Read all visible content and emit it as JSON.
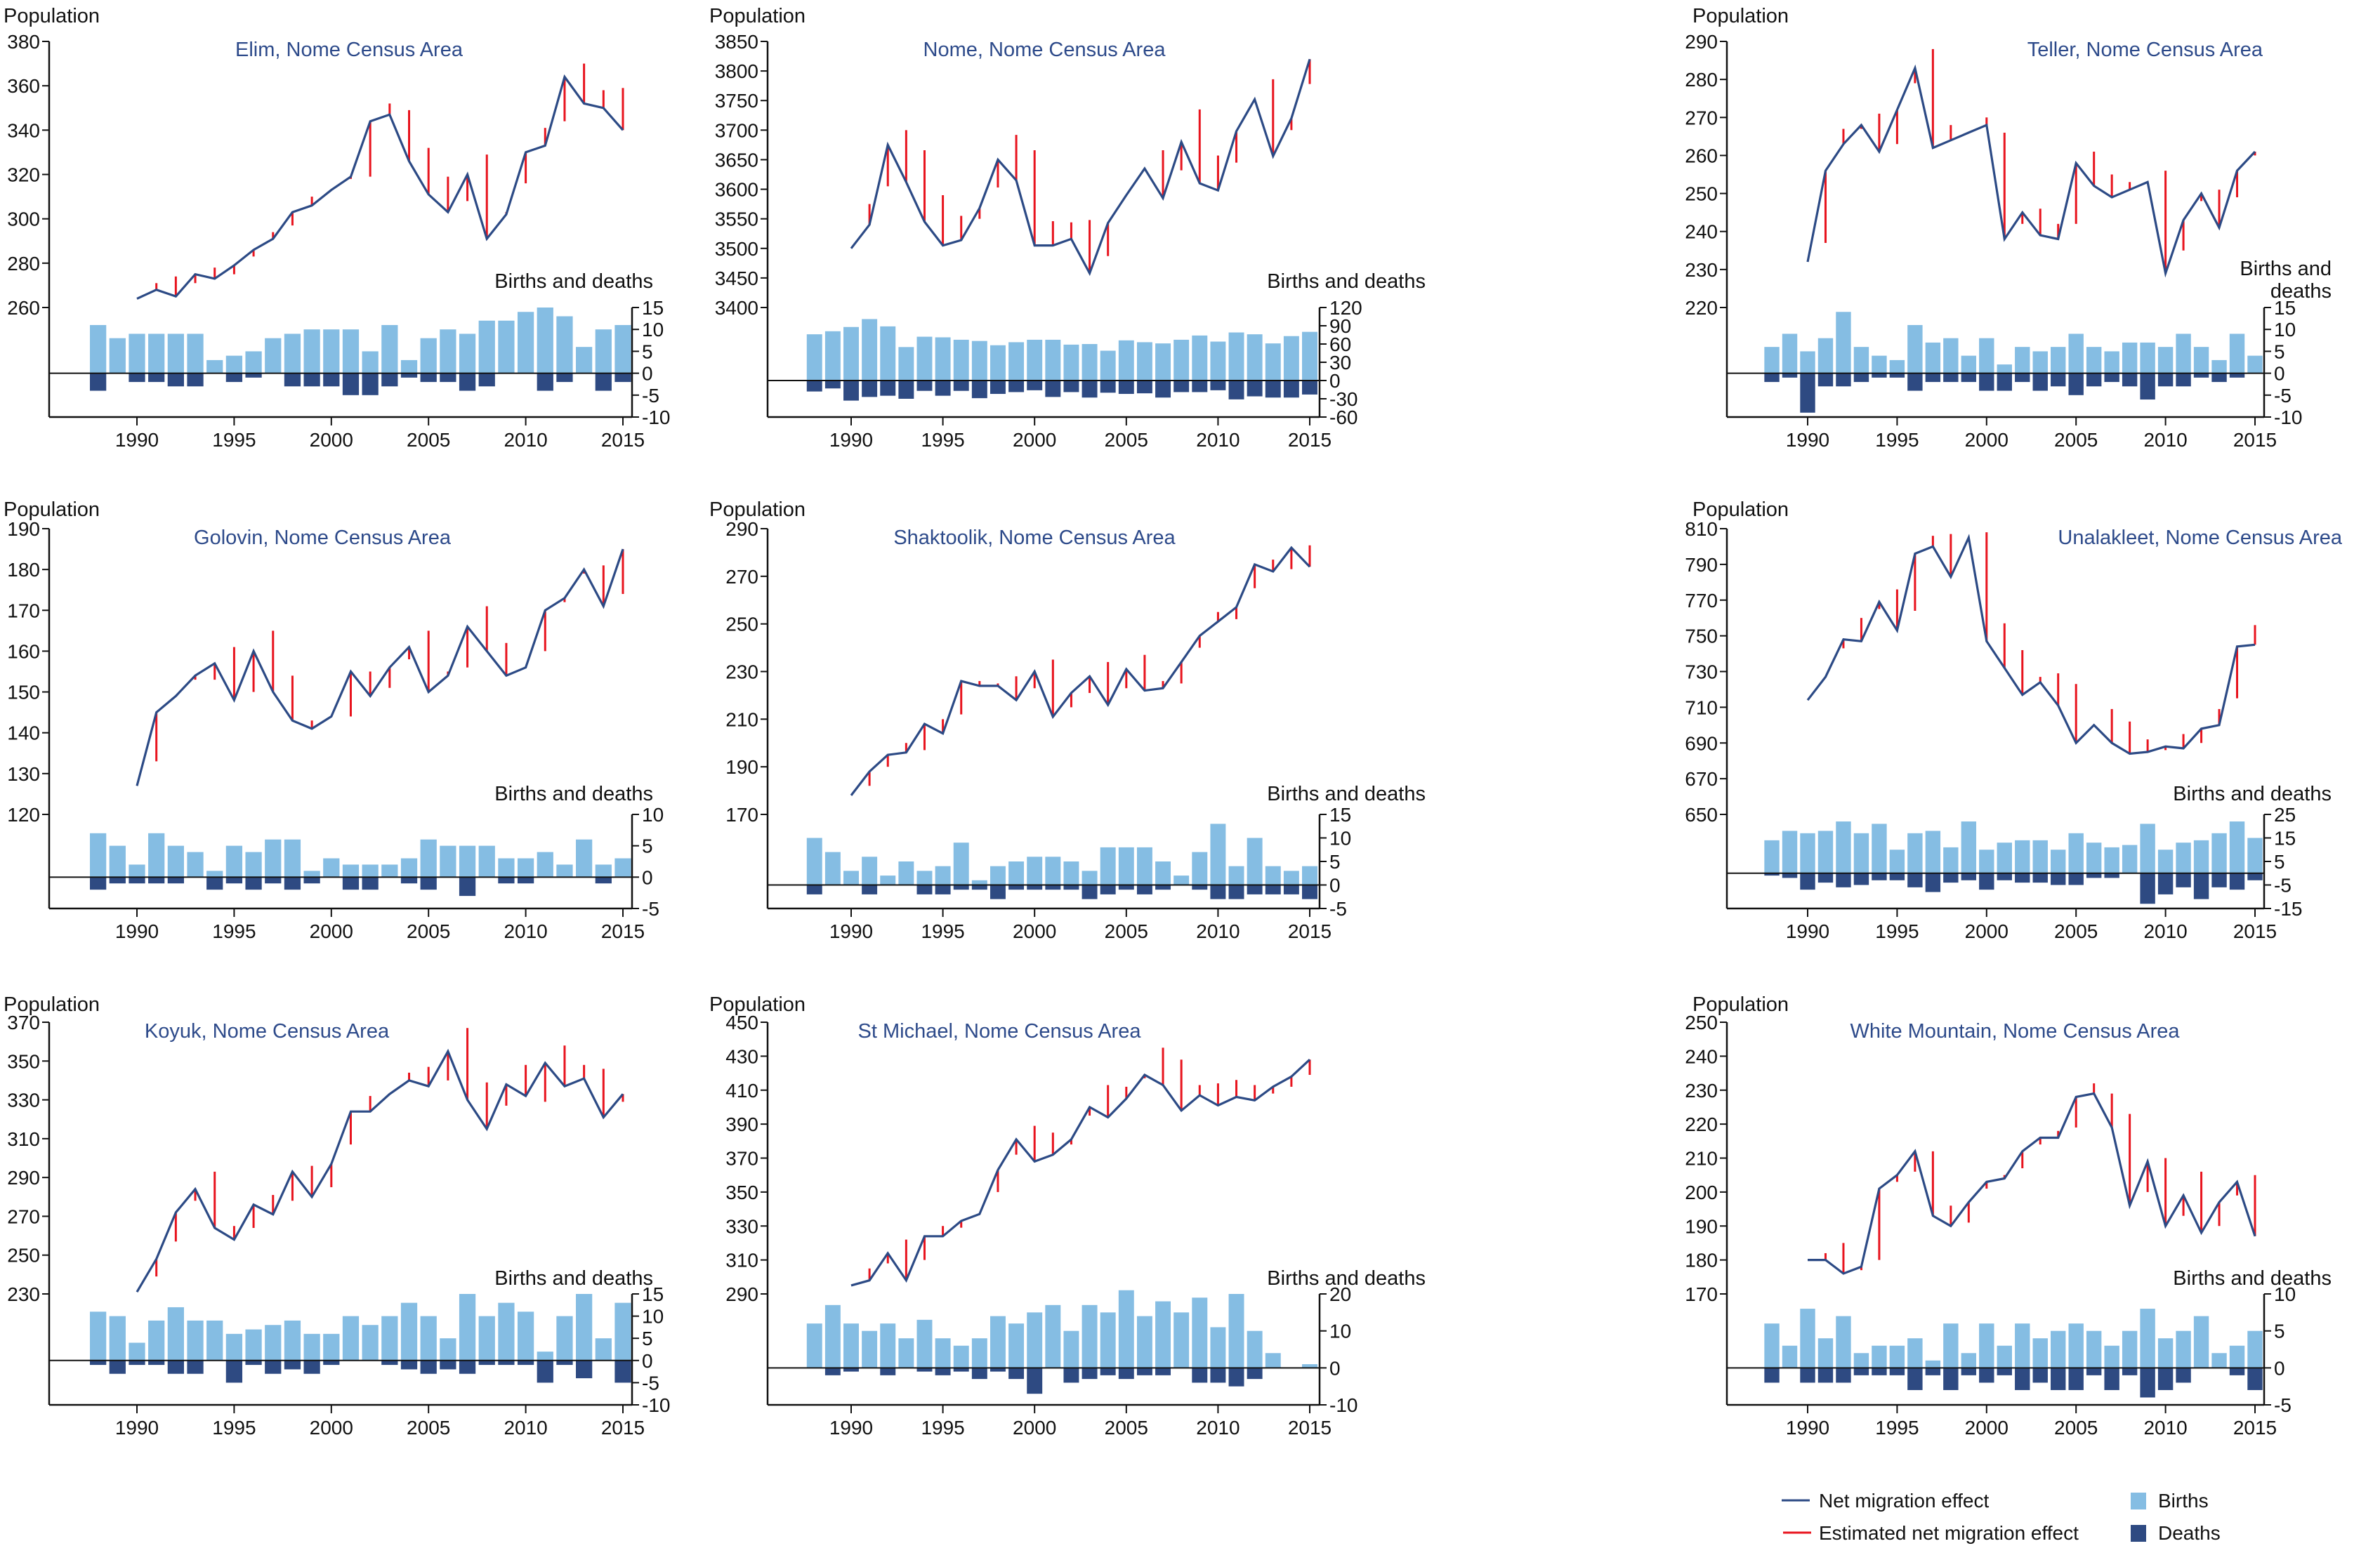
{
  "colors": {
    "births": "#85bde3",
    "deaths": "#2e4a82",
    "net_migration": "#2c4a85",
    "estimated": "#e8141e",
    "title": "#2d4a8a"
  },
  "legend": {
    "net_migration": "Net migration effect",
    "estimated": "Estimated net migration effect",
    "births": "Births",
    "deaths": "Deaths"
  },
  "chart_data": [
    {
      "type": "line+bar",
      "title": "Elim, Nome Census Area",
      "ylabel": "Population",
      "bd_label": [
        "Births and deaths"
      ],
      "pop_ylim": [
        260,
        380
      ],
      "pop_step": 20,
      "bd_ylim": [
        -10,
        15
      ],
      "bd_ticks": [
        -10,
        -5,
        0,
        5,
        10,
        15
      ],
      "years": [
        1990,
        2015
      ],
      "bar_years": [
        1988,
        2015
      ],
      "xticks": [
        1990,
        1995,
        2000,
        2005,
        2010,
        2015
      ],
      "population": [
        264,
        268,
        265,
        275,
        273,
        279,
        286,
        291,
        303,
        306,
        313,
        319,
        344,
        347,
        326,
        311,
        303,
        320,
        291,
        302,
        330,
        333,
        364,
        352,
        350,
        340
      ],
      "estimated": [
        null,
        271,
        274,
        271,
        278,
        275,
        283,
        294,
        297,
        310,
        null,
        318,
        319,
        352,
        349,
        332,
        319,
        308,
        329,
        303,
        316,
        341,
        344,
        370,
        358,
        359
      ],
      "births": [
        11,
        8,
        9,
        9,
        9,
        9,
        3,
        4,
        5,
        8,
        9,
        10,
        10,
        10,
        5,
        11,
        3,
        8,
        10,
        9,
        12,
        12,
        14,
        15,
        13,
        6,
        10,
        11
      ],
      "deaths": [
        -4,
        0,
        -2,
        -2,
        -3,
        -3,
        0,
        -2,
        -1,
        0,
        -3,
        -3,
        -3,
        -5,
        -5,
        -3,
        -1,
        -2,
        -2,
        -4,
        -3,
        0,
        0,
        -4,
        -2,
        0,
        -4,
        -2
      ]
    },
    {
      "type": "line+bar",
      "title": "Nome, Nome Census Area",
      "ylabel": "Population",
      "bd_label": [
        "Births and deaths"
      ],
      "pop_ylim": [
        3400,
        3850
      ],
      "pop_step": 50,
      "bd_ylim": [
        -60,
        120
      ],
      "bd_ticks": [
        -60,
        -30,
        0,
        30,
        60,
        90,
        120
      ],
      "years": [
        1990,
        2015
      ],
      "bar_years": [
        1988,
        2015
      ],
      "xticks": [
        1990,
        1995,
        2000,
        2005,
        2010,
        2015
      ],
      "population": [
        3500,
        3540,
        3675,
        3612,
        3545,
        3505,
        3514,
        3568,
        3650,
        3615,
        3505,
        3505,
        3516,
        3458,
        3543,
        3590,
        3635,
        3585,
        3680,
        3610,
        3598,
        3698,
        3752,
        3656,
        3720,
        3820
      ],
      "estimated": [
        null,
        3575,
        3605,
        3700,
        3666,
        3590,
        3555,
        3550,
        3603,
        3692,
        3666,
        3546,
        3544,
        3548,
        3487,
        null,
        null,
        3666,
        3632,
        3735,
        3657,
        3645,
        null,
        3786,
        3700,
        3778
      ],
      "births": [
        76,
        81,
        88,
        101,
        89,
        55,
        72,
        71,
        67,
        65,
        58,
        63,
        67,
        67,
        59,
        60,
        49,
        66,
        63,
        61,
        67,
        74,
        64,
        79,
        76,
        61,
        73,
        80
      ],
      "deaths": [
        -18,
        -13,
        -33,
        -27,
        -25,
        -30,
        -17,
        -25,
        -17,
        -29,
        -22,
        -19,
        -16,
        -27,
        -19,
        -28,
        -20,
        -22,
        -21,
        -28,
        -19,
        -19,
        -16,
        -31,
        -26,
        -28,
        -28,
        -23
      ]
    },
    {
      "type": "line+bar",
      "title": "Teller, Nome Census Area",
      "ylabel": "Population",
      "bd_label": [
        "Births and",
        "deaths"
      ],
      "pop_ylim": [
        220,
        290
      ],
      "pop_step": 10,
      "bd_ylim": [
        -10,
        15
      ],
      "bd_ticks": [
        -10,
        -5,
        0,
        5,
        10,
        15
      ],
      "years": [
        1990,
        2015
      ],
      "bar_years": [
        1988,
        2015
      ],
      "xticks": [
        1990,
        1995,
        2000,
        2005,
        2010,
        2015
      ],
      "population": [
        232,
        256,
        263,
        268,
        261,
        272,
        283,
        262,
        264,
        266,
        268,
        238,
        245,
        239,
        238,
        258,
        252,
        249,
        251,
        253,
        229,
        243,
        250,
        241,
        256,
        261
      ],
      "estimated": [
        null,
        237,
        267,
        267,
        271,
        263,
        279,
        288,
        268,
        null,
        270,
        266,
        242,
        246,
        242,
        242,
        261,
        255,
        253,
        null,
        256,
        235,
        248,
        251,
        249,
        260
      ],
      "births": [
        6,
        9,
        5,
        8,
        14,
        6,
        4,
        3,
        11,
        7,
        8,
        4,
        8,
        2,
        6,
        5,
        6,
        9,
        6,
        5,
        7,
        7,
        6,
        9,
        6,
        3,
        9,
        4
      ],
      "deaths": [
        -2,
        -1,
        -9,
        -3,
        -3,
        -2,
        -1,
        -1,
        -4,
        -2,
        -2,
        -2,
        -4,
        -4,
        -2,
        -4,
        -3,
        -5,
        -3,
        -2,
        -3,
        -6,
        -3,
        -3,
        -1,
        -2,
        -1,
        0
      ]
    },
    {
      "type": "line+bar",
      "title": "Golovin, Nome Census Area",
      "ylabel": "Population",
      "bd_label": [
        "Births and deaths"
      ],
      "pop_ylim": [
        120,
        190
      ],
      "pop_step": 10,
      "bd_ylim": [
        -5,
        10
      ],
      "bd_ticks": [
        -5,
        0,
        5,
        10
      ],
      "years": [
        1990,
        2015
      ],
      "bar_years": [
        1988,
        2015
      ],
      "xticks": [
        1990,
        1995,
        2000,
        2005,
        2010,
        2015
      ],
      "population": [
        127,
        145,
        149,
        154,
        157,
        148,
        160,
        150,
        143,
        141,
        144,
        155,
        149,
        156,
        161,
        150,
        154,
        166,
        160,
        154,
        156,
        170,
        173,
        180,
        171,
        185
      ],
      "estimated": [
        null,
        133,
        null,
        153,
        153,
        161,
        150,
        165,
        154,
        143,
        null,
        144,
        155,
        151,
        158,
        165,
        155,
        156,
        171,
        162,
        null,
        160,
        172,
        179,
        181,
        174
      ],
      "births": [
        7,
        5,
        2,
        7,
        5,
        4,
        1,
        5,
        4,
        6,
        6,
        1,
        3,
        2,
        2,
        2,
        3,
        6,
        5,
        5,
        5,
        3,
        3,
        4,
        2,
        6,
        2,
        3
      ],
      "deaths": [
        -2,
        -1,
        -1,
        -1,
        -1,
        0,
        -2,
        -1,
        -2,
        -1,
        -2,
        -1,
        0,
        -2,
        -2,
        0,
        -1,
        -2,
        0,
        -3,
        0,
        -1,
        -1,
        0,
        0,
        0,
        -1,
        0
      ]
    },
    {
      "type": "line+bar",
      "title": "Shaktoolik, Nome Census Area",
      "ylabel": "Population",
      "bd_label": [
        "Births and deaths"
      ],
      "pop_ylim": [
        170,
        290
      ],
      "pop_step": 20,
      "bd_ylim": [
        -5,
        15
      ],
      "bd_ticks": [
        -5,
        0,
        5,
        10,
        15
      ],
      "years": [
        1990,
        2015
      ],
      "bar_years": [
        1988,
        2015
      ],
      "xticks": [
        1990,
        1995,
        2000,
        2005,
        2010,
        2015
      ],
      "population": [
        178,
        188,
        195,
        196,
        208,
        204,
        226,
        224,
        224,
        218,
        230,
        211,
        221,
        228,
        216,
        231,
        222,
        223,
        234,
        245,
        251,
        257,
        275,
        272,
        282,
        274
      ],
      "estimated": [
        null,
        182,
        190,
        200,
        197,
        210,
        212,
        226,
        225,
        228,
        223,
        235,
        215,
        221,
        234,
        223,
        237,
        226,
        225,
        240,
        255,
        252,
        265,
        277,
        273,
        283
      ],
      "births": [
        10,
        7,
        3,
        6,
        2,
        5,
        3,
        4,
        9,
        1,
        4,
        5,
        6,
        6,
        5,
        3,
        8,
        8,
        8,
        5,
        2,
        7,
        13,
        4,
        10,
        4,
        3,
        4
      ],
      "deaths": [
        -2,
        0,
        0,
        -2,
        0,
        0,
        -2,
        -2,
        -1,
        -1,
        -3,
        -1,
        -1,
        -1,
        -1,
        -3,
        -2,
        -1,
        -2,
        -1,
        0,
        -1,
        -3,
        -3,
        -2,
        -2,
        -2,
        -3
      ]
    },
    {
      "type": "line+bar",
      "title": "Unalakleet, Nome Census Area",
      "ylabel": "Population",
      "bd_label": [
        "Births and deaths"
      ],
      "pop_ylim": [
        650,
        810
      ],
      "pop_step": 20,
      "bd_ylim": [
        -15,
        25
      ],
      "bd_ticks": [
        -15,
        -5,
        5,
        15,
        25
      ],
      "years": [
        1990,
        2015
      ],
      "bar_years": [
        1988,
        2015
      ],
      "xticks": [
        1990,
        1995,
        2000,
        2005,
        2010,
        2015
      ],
      "population": [
        714,
        727,
        748,
        747,
        769,
        753,
        796,
        800,
        783,
        805,
        747,
        732,
        717,
        724,
        711,
        690,
        700,
        690,
        684,
        685,
        688,
        687,
        698,
        700,
        744,
        745
      ],
      "estimated": [
        null,
        null,
        743,
        760,
        765,
        776,
        764,
        806,
        807,
        null,
        808,
        757,
        742,
        727,
        729,
        723,
        null,
        709,
        702,
        692,
        686,
        695,
        690,
        709,
        715,
        756
      ],
      "births": [
        14,
        18,
        17,
        18,
        22,
        17,
        21,
        10,
        17,
        18,
        11,
        22,
        10,
        13,
        14,
        14,
        10,
        17,
        13,
        11,
        12,
        21,
        10,
        13,
        14,
        17,
        22,
        15
      ],
      "deaths": [
        -1,
        -2,
        -7,
        -4,
        -6,
        -5,
        -3,
        -3,
        -6,
        -8,
        -4,
        -3,
        -7,
        -3,
        -4,
        -4,
        -5,
        -5,
        -2,
        -2,
        0,
        -13,
        -9,
        -6,
        -11,
        -6,
        -7,
        -3
      ]
    },
    {
      "type": "line+bar",
      "title": "Koyuk, Nome Census Area",
      "ylabel": "Population",
      "bd_label": [
        "Births and deaths"
      ],
      "pop_ylim": [
        230,
        370
      ],
      "pop_step": 20,
      "bd_ylim": [
        -10,
        15
      ],
      "bd_ticks": [
        -10,
        -5,
        0,
        5,
        10,
        15
      ],
      "years": [
        1990,
        2015
      ],
      "bar_years": [
        1988,
        2015
      ],
      "xticks": [
        1990,
        1995,
        2000,
        2005,
        2010,
        2015
      ],
      "population": [
        231,
        248,
        272,
        284,
        264,
        258,
        276,
        271,
        293,
        280,
        297,
        324,
        324,
        333,
        340,
        337,
        355,
        330,
        315,
        338,
        332,
        349,
        337,
        341,
        321,
        333
      ],
      "estimated": [
        null,
        239,
        257,
        278,
        293,
        265,
        264,
        281,
        278,
        296,
        285,
        307,
        332,
        null,
        344,
        347,
        340,
        367,
        339,
        327,
        348,
        329,
        358,
        348,
        346,
        329
      ],
      "births": [
        11,
        10,
        4,
        9,
        12,
        9,
        9,
        6,
        7,
        8,
        9,
        6,
        6,
        10,
        8,
        10,
        13,
        10,
        5,
        15,
        10,
        13,
        11,
        2,
        10,
        15,
        5,
        13
      ],
      "deaths": [
        -1,
        -3,
        -1,
        -1,
        -3,
        -3,
        0,
        -5,
        -1,
        -3,
        -2,
        -3,
        -1,
        0,
        0,
        -1,
        -2,
        -3,
        -2,
        -3,
        -1,
        -1,
        -1,
        -5,
        -1,
        -4,
        0,
        -5
      ]
    },
    {
      "type": "line+bar",
      "title": "St Michael, Nome Census Area",
      "ylabel": "Population",
      "bd_label": [
        "Births and deaths"
      ],
      "pop_ylim": [
        290,
        450
      ],
      "pop_step": 20,
      "bd_ylim": [
        -10,
        20
      ],
      "bd_ticks": [
        -10,
        0,
        10,
        20
      ],
      "years": [
        1990,
        2015
      ],
      "bar_years": [
        1988,
        2015
      ],
      "xticks": [
        1990,
        1995,
        2000,
        2005,
        2010,
        2015
      ],
      "population": [
        295,
        298,
        314,
        298,
        324,
        324,
        333,
        337,
        363,
        381,
        368,
        372,
        381,
        400,
        394,
        405,
        419,
        413,
        398,
        407,
        401,
        406,
        404,
        412,
        418,
        428
      ],
      "estimated": [
        null,
        305,
        308,
        322,
        310,
        330,
        329,
        null,
        350,
        372,
        389,
        385,
        378,
        395,
        413,
        412,
        417,
        435,
        428,
        413,
        414,
        416,
        413,
        408,
        412,
        419
      ],
      "births": [
        12,
        17,
        12,
        10,
        12,
        8,
        13,
        8,
        6,
        8,
        14,
        12,
        15,
        17,
        10,
        17,
        15,
        21,
        14,
        18,
        15,
        19,
        11,
        20,
        10,
        4,
        0,
        1
      ],
      "deaths": [
        0,
        -2,
        -1,
        0,
        -2,
        0,
        -1,
        -2,
        -1,
        -3,
        -1,
        -3,
        -7,
        0,
        -4,
        -3,
        -2,
        -3,
        -2,
        -2,
        0,
        -4,
        -4,
        -5,
        -3,
        0,
        0,
        0
      ]
    },
    {
      "type": "line+bar",
      "title": "White Mountain, Nome Census Area",
      "ylabel": "Population",
      "bd_label": [
        "Births and deaths"
      ],
      "pop_ylim": [
        170,
        250
      ],
      "pop_step": 10,
      "bd_ylim": [
        -5,
        10
      ],
      "bd_ticks": [
        -5,
        0,
        5,
        10
      ],
      "years": [
        1990,
        2015
      ],
      "bar_years": [
        1988,
        2015
      ],
      "xticks": [
        1990,
        1995,
        2000,
        2005,
        2010,
        2015
      ],
      "population": [
        180,
        180,
        176,
        178,
        201,
        205,
        212,
        193,
        190,
        197,
        203,
        204,
        212,
        216,
        216,
        228,
        229,
        219,
        196,
        209,
        190,
        199,
        188,
        197,
        203,
        187
      ],
      "estimated": [
        null,
        182,
        185,
        177,
        180,
        203,
        206,
        212,
        196,
        191,
        201,
        205,
        207,
        214,
        218,
        219,
        232,
        229,
        223,
        200,
        210,
        193,
        206,
        190,
        199,
        205
      ],
      "births": [
        6,
        3,
        8,
        4,
        7,
        2,
        3,
        3,
        4,
        1,
        6,
        2,
        6,
        3,
        6,
        4,
        5,
        6,
        5,
        3,
        5,
        8,
        4,
        5,
        7,
        2,
        3,
        5
      ],
      "deaths": [
        -2,
        0,
        -2,
        -2,
        -2,
        -1,
        -1,
        -1,
        -3,
        -1,
        -3,
        -1,
        -2,
        -1,
        -3,
        -2,
        -3,
        -3,
        -1,
        -3,
        -1,
        -4,
        -3,
        -2,
        0,
        0,
        -1,
        -3
      ]
    }
  ]
}
